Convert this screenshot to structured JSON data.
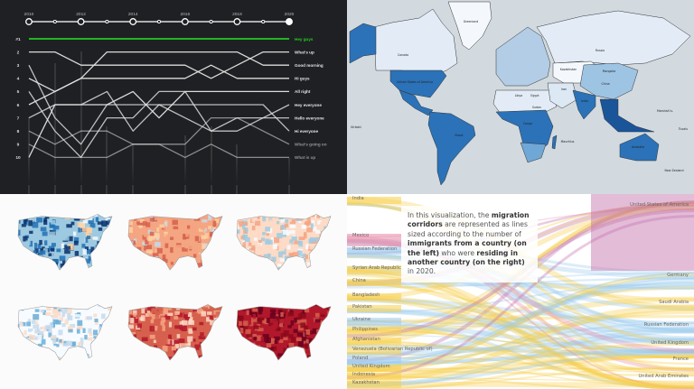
{
  "chart_data": [
    {
      "type": "line",
      "subtype": "bump",
      "x": [
        2010,
        2011,
        2012,
        2013,
        2014,
        2015,
        2016,
        2017,
        2018,
        2019,
        2020
      ],
      "x_tick_labels": [
        "2010",
        "2012",
        "2014",
        "2016",
        "2018",
        "2020"
      ],
      "y_tick_labels": [
        "#1",
        "2",
        "3",
        "4",
        "5",
        "6",
        "7",
        "8",
        "9",
        "10"
      ],
      "ylim": [
        1,
        10
      ],
      "y_inverted": true,
      "highlight_color": "#22cc22",
      "series": [
        {
          "name": "Hey guys",
          "values": [
            1,
            1,
            1,
            1,
            1,
            1,
            1,
            1,
            1,
            1,
            1
          ]
        },
        {
          "name": "What's up",
          "values": [
            2,
            2,
            3,
            3,
            3,
            3,
            3,
            4,
            3,
            2,
            2
          ]
        },
        {
          "name": "Good morning",
          "values": [
            6,
            5,
            4,
            2,
            2,
            2,
            2,
            2,
            2,
            3,
            3
          ]
        },
        {
          "name": "Hi guys",
          "values": [
            4,
            5,
            4,
            4,
            4,
            4,
            4,
            3,
            4,
            4,
            4
          ]
        },
        {
          "name": "All right",
          "values": [
            10,
            6,
            6,
            6,
            5,
            7,
            5,
            5,
            5,
            5,
            5
          ]
        },
        {
          "name": "Hey everyone",
          "values": [
            3,
            7,
            9,
            6,
            6,
            6,
            7,
            8,
            8,
            7,
            6
          ]
        },
        {
          "name": "Hello everyone",
          "values": [
            5,
            8,
            10,
            7,
            7,
            5,
            5,
            8,
            7,
            7,
            7
          ]
        },
        {
          "name": "Hi everyone",
          "values": [
            7,
            6,
            6,
            5,
            8,
            6,
            6,
            6,
            6,
            6,
            8
          ]
        },
        {
          "name": "What's going on",
          "values": [
            8,
            9,
            8,
            8,
            9,
            9,
            9,
            7,
            7,
            8,
            9
          ]
        },
        {
          "name": "What is up",
          "values": [
            9,
            10,
            10,
            10,
            9,
            9,
            10,
            9,
            10,
            10,
            10
          ]
        }
      ]
    },
    {
      "type": "choropleth",
      "region": "world",
      "palette": [
        "#f4f8fc",
        "#dce8f4",
        "#b3cde6",
        "#6fa7d6",
        "#2b72b8",
        "#1a559a"
      ],
      "labels": [
        "Greenland",
        "Canada",
        "United States of America",
        "Russia",
        "Kazakhstan",
        "Mongolia",
        "China",
        "India",
        "Iran",
        "Libya",
        "Egypt",
        "Sudan",
        "Congo",
        "Brazil",
        "Australia",
        "Kiribati",
        "Marshall Is.",
        "Tuvalu",
        "Mauritius",
        "New Zealand"
      ]
    },
    {
      "type": "choropleth",
      "region": "united-states",
      "small_multiples": 6,
      "palettes": [
        [
          "#08306b",
          "#2171b5",
          "#9ecae1",
          "#f7fbff",
          "#fdd0a2"
        ],
        [
          "#c6dbef",
          "#fdd0a2",
          "#f4a582",
          "#d6604d"
        ],
        [
          "#9ecae1",
          "#f7fbff",
          "#fddbc7",
          "#f4a582"
        ],
        [
          "#6baed6",
          "#c6dbef",
          "#f7fbff",
          "#fddbc7"
        ],
        [
          "#fddbc7",
          "#f4a582",
          "#d6604d",
          "#b2182b"
        ],
        [
          "#67001f",
          "#8b0a1a",
          "#b2182b",
          "#d6604d"
        ]
      ]
    },
    {
      "type": "sankey",
      "colors": {
        "left_yellow": "#f7cf4a",
        "left_blue": "#9ccbef",
        "left_pink": "#e889a8",
        "right_purple": "#c06aa8"
      },
      "left_nodes": [
        "India",
        "Mexico",
        "Russian Federation",
        "Syrian Arab Republic",
        "China",
        "Bangladesh",
        "Pakistan",
        "Ukraine",
        "Philippines",
        "Afghanistan",
        "Venezuela (Bolivarian Republic of)",
        "Poland",
        "United Kingdom",
        "Indonesia",
        "Kazakhstan"
      ],
      "right_nodes": [
        "United States of America",
        "Germany",
        "Saudi Arabia",
        "Russian Federation",
        "United Kingdom",
        "France",
        "United Arab Emirates"
      ],
      "annotation": {
        "p1": "In this visualization, the ",
        "b1": "migration corridors",
        "p2": " are represented as lines sized according to the number of ",
        "b2": "immigrants from a country (on the left)",
        "p3": " who were ",
        "b3": "residing in another country (on the right)",
        "p4": " in 2020."
      }
    }
  ]
}
